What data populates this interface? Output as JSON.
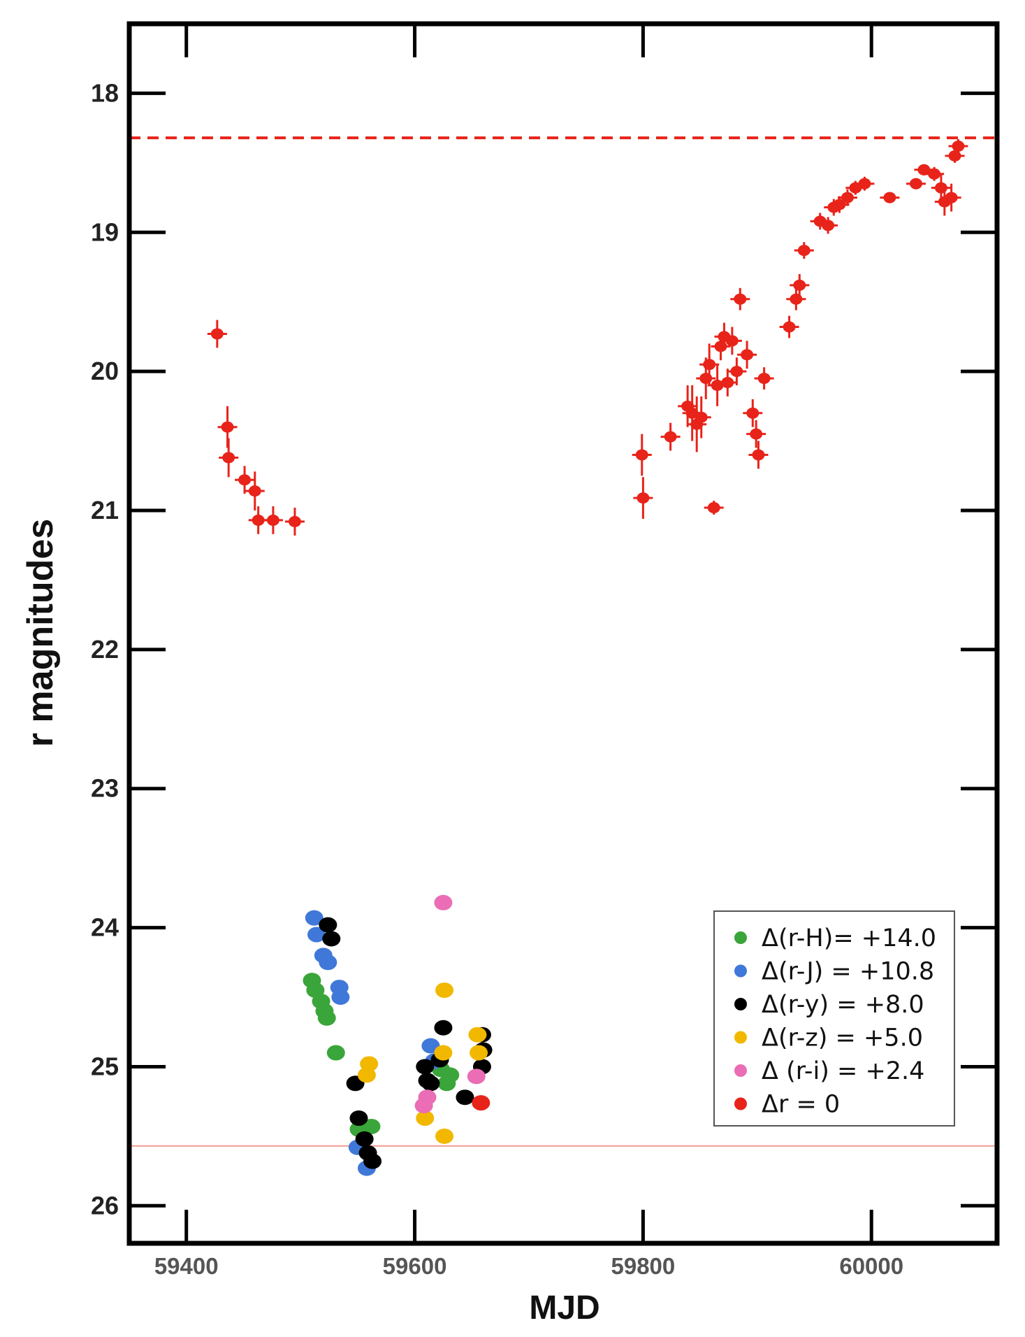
{
  "chart_data": {
    "type": "scatter",
    "xlabel": "MJD",
    "ylabel": "r magnitudes",
    "xlim": [
      59350,
      60110
    ],
    "ylim": [
      26.27,
      17.5
    ],
    "y_inverted": true,
    "xticks": [
      59400,
      59600,
      59800,
      60000
    ],
    "xtick_labels": [
      "59400",
      "59600",
      "59800",
      "60000"
    ],
    "yticks": [
      18,
      19,
      20,
      21,
      22,
      23,
      24,
      25,
      26
    ],
    "ytick_labels": [
      "18",
      "19",
      "20",
      "21",
      "22",
      "23",
      "24",
      "25",
      "26"
    ],
    "reference_lines": [
      {
        "style": "dashed",
        "color": "#e8231a",
        "y": 18.32
      },
      {
        "style": "solid",
        "color": "#f29a94",
        "y": 25.57
      }
    ],
    "legend": {
      "position": "lower-right",
      "entries": [
        {
          "label": "Δ(r-H)= +14.0",
          "color": "#3aa53a"
        },
        {
          "label": "Δ(r-J) = +10.8",
          "color": "#3f78d8"
        },
        {
          "label": "Δ(r-y) = +8.0",
          "color": "#000000"
        },
        {
          "label": "Δ(r-z) = +5.0",
          "color": "#f2b800"
        },
        {
          "label": "Δ (r-i) = +2.4",
          "color": "#ea6db5"
        },
        {
          "label": "Δr        =    0",
          "color": "#e8231a"
        }
      ]
    },
    "series": [
      {
        "color": "#e8231a",
        "error_bars": true,
        "points": [
          [
            59427,
            19.73,
            0.1
          ],
          [
            59436,
            20.4,
            0.15
          ],
          [
            59437,
            20.62,
            0.14
          ],
          [
            59451,
            20.78,
            0.1
          ],
          [
            59460,
            20.86,
            0.14
          ],
          [
            59463,
            21.07,
            0.1
          ],
          [
            59476,
            21.07,
            0.1
          ],
          [
            59495,
            21.08,
            0.1
          ],
          [
            59799,
            20.6,
            0.15
          ],
          [
            59800,
            20.91,
            0.15
          ],
          [
            59824,
            20.47,
            0.1
          ],
          [
            59839,
            20.25,
            0.15
          ],
          [
            59843,
            20.3,
            0.2
          ],
          [
            59847,
            20.38,
            0.2
          ],
          [
            59851,
            20.33,
            0.15
          ],
          [
            59855,
            20.05,
            0.15
          ],
          [
            59858,
            19.95,
            0.15
          ],
          [
            59862,
            20.98,
            0.05
          ],
          [
            59865,
            20.1,
            0.15
          ],
          [
            59868,
            19.82,
            0.1
          ],
          [
            59871,
            19.75,
            0.1
          ],
          [
            59874,
            20.08,
            0.1
          ],
          [
            59878,
            19.78,
            0.1
          ],
          [
            59882,
            20.0,
            0.1
          ],
          [
            59885,
            19.48,
            0.08
          ],
          [
            59891,
            19.88,
            0.1
          ],
          [
            59896,
            20.3,
            0.1
          ],
          [
            59899,
            20.45,
            0.1
          ],
          [
            59901,
            20.6,
            0.1
          ],
          [
            59906,
            20.05,
            0.08
          ],
          [
            59928,
            19.68,
            0.08
          ],
          [
            59934,
            19.48,
            0.08
          ],
          [
            59937,
            19.38,
            0.08
          ],
          [
            59941,
            19.13,
            0.06
          ],
          [
            59955,
            18.92,
            0.06
          ],
          [
            59962,
            18.95,
            0.06
          ],
          [
            59967,
            18.82,
            0.06
          ],
          [
            59972,
            18.8,
            0.06
          ],
          [
            59979,
            18.75,
            0.06
          ],
          [
            59986,
            18.68,
            0.05
          ],
          [
            59994,
            18.65,
            0.05
          ],
          [
            60016,
            18.75,
            0.04
          ],
          [
            60039,
            18.65,
            0.04
          ],
          [
            60046,
            18.55,
            0.04
          ],
          [
            60055,
            18.58,
            0.05
          ],
          [
            60061,
            18.68,
            0.1
          ],
          [
            60064,
            18.78,
            0.1
          ],
          [
            60070,
            18.75,
            0.1
          ],
          [
            60073,
            18.45,
            0.05
          ],
          [
            60076,
            18.38,
            0.05
          ]
        ]
      },
      {
        "color": "#3aa53a",
        "points": [
          [
            59510,
            24.38
          ],
          [
            59513,
            24.45
          ],
          [
            59518,
            24.53
          ],
          [
            59521,
            24.6
          ],
          [
            59523,
            24.65
          ],
          [
            59531,
            24.9
          ],
          [
            59551,
            25.45
          ],
          [
            59562,
            25.43
          ],
          [
            59623,
            25.02
          ],
          [
            59628,
            25.12
          ],
          [
            59631,
            25.06
          ]
        ]
      },
      {
        "color": "#3f78d8",
        "points": [
          [
            59512,
            23.93
          ],
          [
            59514,
            24.05
          ],
          [
            59520,
            24.2
          ],
          [
            59524,
            24.25
          ],
          [
            59534,
            24.43
          ],
          [
            59535,
            24.5
          ],
          [
            59550,
            25.58
          ],
          [
            59558,
            25.73
          ],
          [
            59614,
            24.85
          ],
          [
            59617,
            24.96
          ]
        ]
      },
      {
        "color": "#000000",
        "points": [
          [
            59524,
            23.98
          ],
          [
            59527,
            24.08
          ],
          [
            59548,
            25.12
          ],
          [
            59551,
            25.37
          ],
          [
            59556,
            25.52
          ],
          [
            59559,
            25.62
          ],
          [
            59563,
            25.68
          ],
          [
            59609,
            25.0
          ],
          [
            59611,
            25.1
          ],
          [
            59614,
            25.12
          ],
          [
            59622,
            24.95
          ],
          [
            59625,
            24.72
          ],
          [
            59644,
            25.22
          ],
          [
            59659,
            24.77
          ],
          [
            59660,
            24.88
          ],
          [
            59659,
            25.0
          ]
        ]
      },
      {
        "color": "#f2b800",
        "points": [
          [
            59560,
            24.98
          ],
          [
            59558,
            25.06
          ],
          [
            59609,
            25.37
          ],
          [
            59626,
            24.45
          ],
          [
            59625,
            24.9
          ],
          [
            59626,
            25.5
          ],
          [
            59655,
            24.77
          ],
          [
            59656,
            24.9
          ]
        ]
      },
      {
        "color": "#ea6db5",
        "points": [
          [
            59625,
            23.82
          ],
          [
            59608,
            25.28
          ],
          [
            59611,
            25.22
          ],
          [
            59654,
            25.07
          ]
        ]
      },
      {
        "color": "#e8231a",
        "points": [
          [
            59658,
            25.26
          ]
        ]
      }
    ]
  }
}
